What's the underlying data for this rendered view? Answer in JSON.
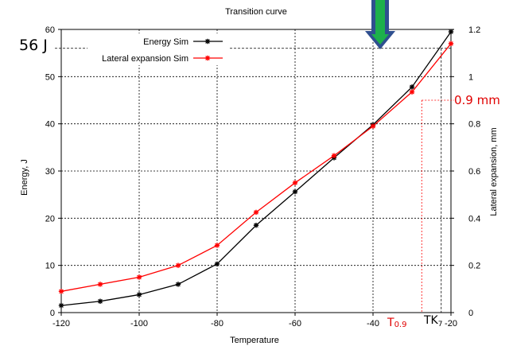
{
  "chart_data": {
    "type": "line",
    "title": "Transition curve",
    "xlabel": "Temperature",
    "ylabel": "Energy, J",
    "y2label": "Lateral expansion, mm",
    "xlim": [
      -120,
      -20
    ],
    "ylim": [
      0,
      60
    ],
    "y2lim": [
      0,
      1.2
    ],
    "x_ticks": [
      "-120",
      "-100",
      "-80",
      "-60",
      "-40",
      "-20"
    ],
    "y_ticks": [
      "0",
      "10",
      "20",
      "30",
      "40",
      "50",
      "60"
    ],
    "y2_ticks": [
      "0",
      "0.2",
      "0.4",
      "0.6",
      "0.8",
      "1",
      "1.2"
    ],
    "grid": true,
    "legend_position": "top-left",
    "series": [
      {
        "name": "Energy Sim",
        "color": "#000000",
        "marker": "star",
        "axis": "left",
        "x": [
          -120,
          -110,
          -100,
          -90,
          -80,
          -70,
          -60,
          -50,
          -40,
          -30,
          -20
        ],
        "y": [
          1.5,
          2.4,
          3.8,
          6.0,
          10.3,
          18.5,
          25.6,
          32.8,
          39.8,
          47.8,
          59.5
        ]
      },
      {
        "name": "Lateral expansion Sim",
        "color": "#ff0000",
        "marker": "star",
        "axis": "right",
        "x": [
          -120,
          -110,
          -100,
          -90,
          -80,
          -70,
          -60,
          -50,
          -40,
          -30,
          -20
        ],
        "y": [
          0.09,
          0.12,
          0.15,
          0.2,
          0.285,
          0.425,
          0.55,
          0.665,
          0.79,
          0.935,
          1.14
        ]
      }
    ],
    "annotations": {
      "energy_level": {
        "label": "56 J",
        "value": 56
      },
      "expansion_level": {
        "label": "0.9 mm",
        "value": 0.9
      },
      "t09": {
        "label_main": "T",
        "label_sub": "0.9",
        "x": -27.5
      },
      "tk7": {
        "label": "TK",
        "label_sub": "7",
        "x": -22.5
      }
    },
    "arrow": {
      "outline_color": "#2f4f8f",
      "fill_color": "#1db04b"
    }
  }
}
